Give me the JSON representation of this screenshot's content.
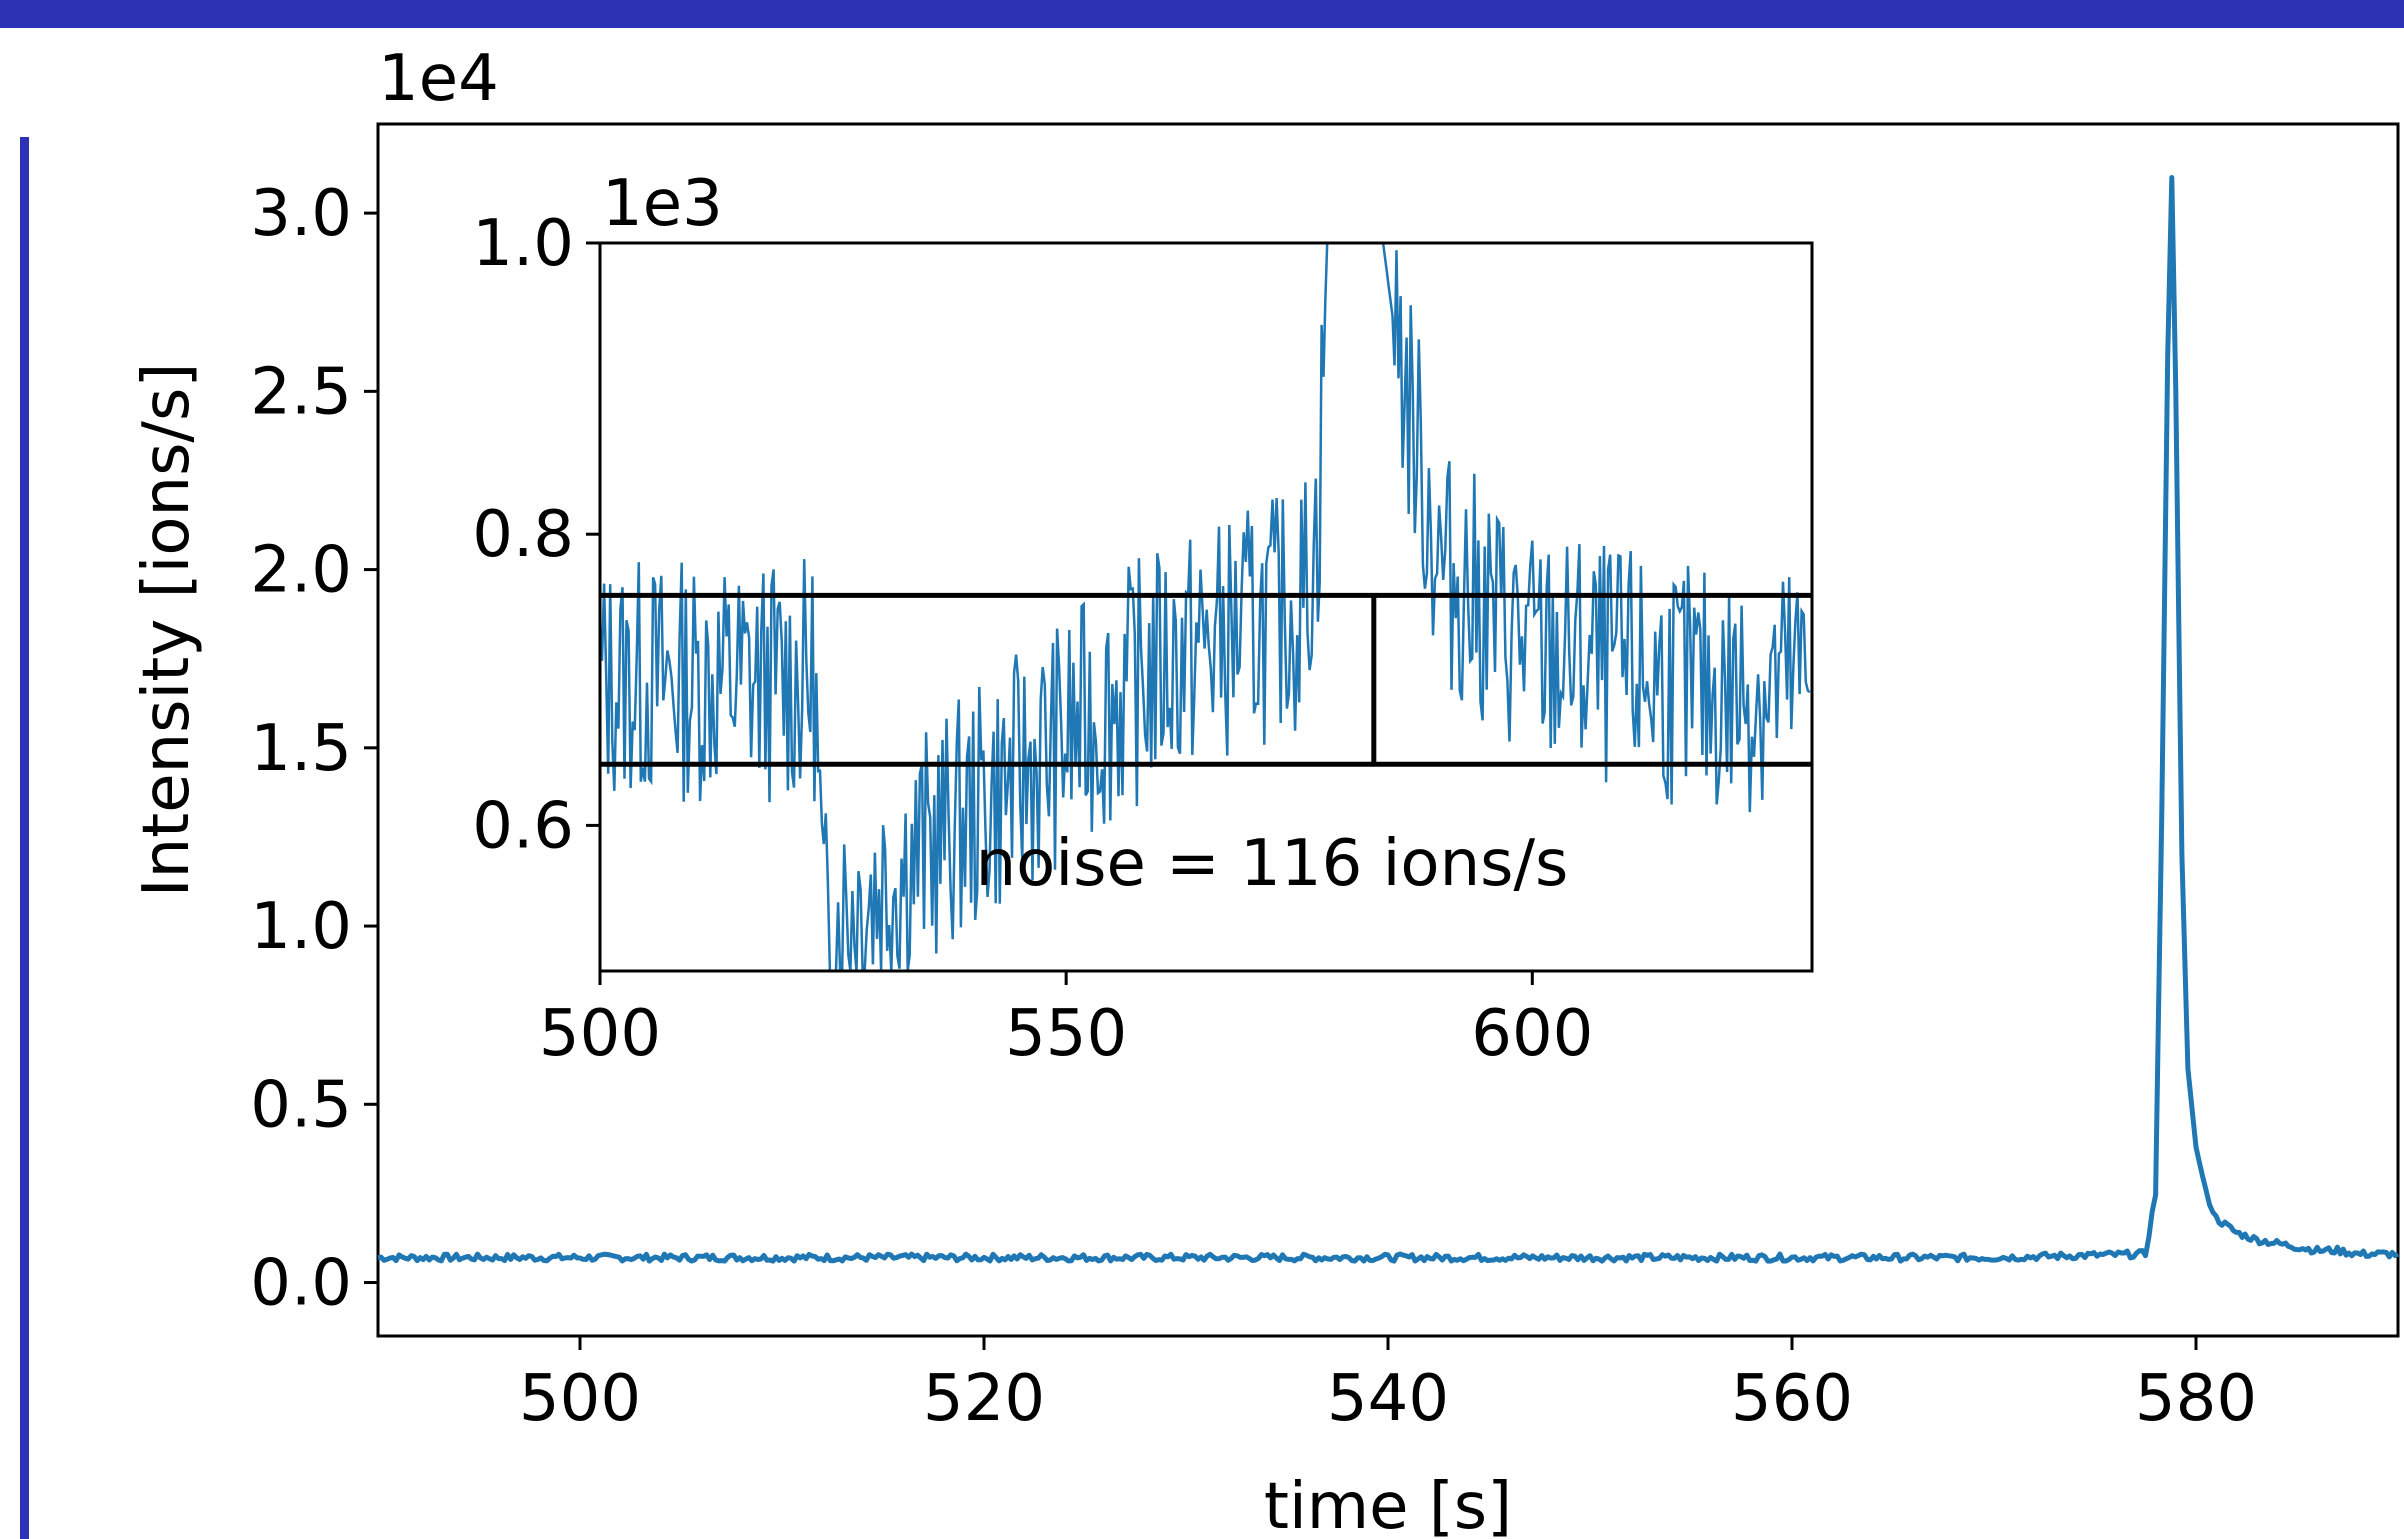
{
  "colors": {
    "frame": "#2c33b4",
    "series": "#1f77b4",
    "axes": "#000000",
    "background": "#ffffff"
  },
  "chart_data": [
    {
      "type": "line",
      "role": "main",
      "xlabel": "time [s]",
      "ylabel": "Intensity [ions/s]",
      "y_scale_label": "1e4",
      "xlim": [
        490,
        590
      ],
      "ylim": [
        -0.15,
        3.25
      ],
      "y_multiplier": 10000,
      "xticks": [
        500,
        520,
        540,
        560,
        580
      ],
      "xtick_labels": [
        "500",
        "520",
        "540",
        "560",
        "580"
      ],
      "yticks": [
        0.0,
        0.5,
        1.0,
        1.5,
        2.0,
        2.5,
        3.0
      ],
      "ytick_labels": [
        "0.0",
        "0.5",
        "1.0",
        "1.5",
        "2.0",
        "2.5",
        "3.0"
      ],
      "grid": false,
      "series": [
        {
          "x": [
            490,
            500,
            510,
            520,
            530,
            540,
            550,
            560,
            570,
            577.5,
            578.0,
            578.3,
            578.6,
            578.8,
            579.0,
            579.3,
            579.6,
            580.0,
            580.5,
            581.0,
            582.0,
            583.0,
            584.0,
            585.0,
            586.0,
            587.0,
            588.0,
            589.0,
            590.0
          ],
          "y": [
            0.07,
            0.07,
            0.07,
            0.07,
            0.07,
            0.07,
            0.07,
            0.07,
            0.07,
            0.08,
            0.25,
            1.3,
            2.6,
            3.1,
            2.5,
            1.2,
            0.6,
            0.38,
            0.25,
            0.18,
            0.14,
            0.12,
            0.11,
            0.1,
            0.09,
            0.09,
            0.08,
            0.08,
            0.08
          ]
        }
      ]
    },
    {
      "type": "line",
      "role": "inset",
      "y_scale_label": "1e3",
      "xlim": [
        500,
        630
      ],
      "ylim": [
        0.5,
        1.0
      ],
      "y_multiplier": 1000,
      "xticks": [
        500,
        550,
        600
      ],
      "xtick_labels": [
        "500",
        "550",
        "600"
      ],
      "yticks": [
        0.6,
        0.8,
        1.0
      ],
      "ytick_labels": [
        "0.6",
        "0.8",
        "1.0"
      ],
      "annotation": "noise = 116 ions/s",
      "noise_band": {
        "lower": 0.642,
        "upper": 0.758,
        "mean": 0.7,
        "divider_x": 583
      },
      "series": [
        {
          "x": [
            500,
            523,
            524,
            560,
            575,
            577,
            578,
            584,
            585,
            590,
            600,
            620,
            630
          ],
          "y": [
            0.7,
            0.7,
            0.53,
            0.71,
            0.75,
            0.8,
            1.0,
            1.0,
            0.95,
            0.78,
            0.72,
            0.69,
            0.7
          ]
        }
      ]
    }
  ]
}
